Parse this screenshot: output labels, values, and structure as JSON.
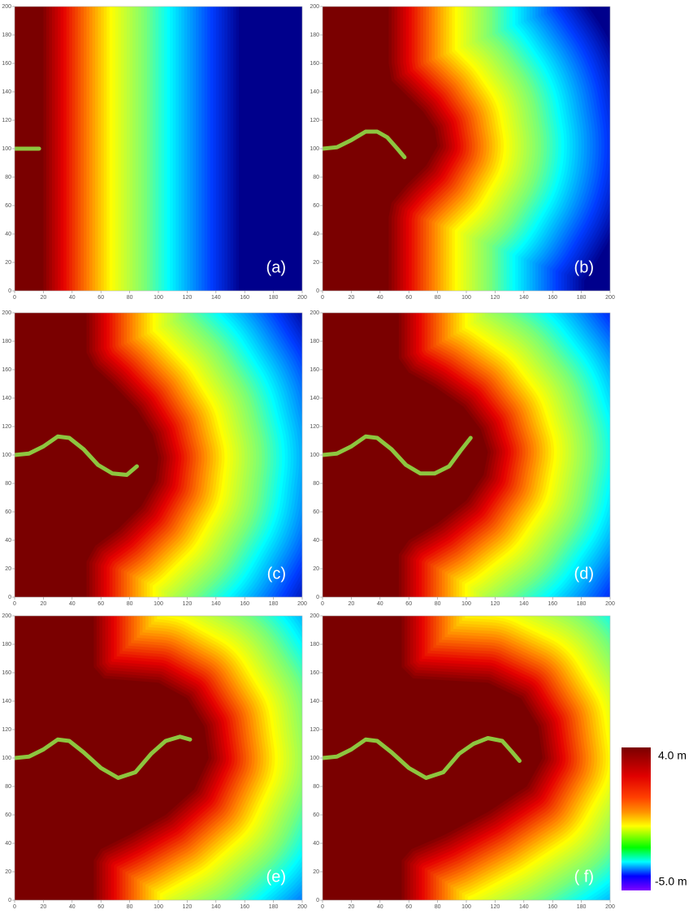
{
  "chart_data": [
    {
      "type": "heatmap",
      "annotation": "(a)",
      "xlim": [
        0,
        200
      ],
      "ylim": [
        0,
        200
      ],
      "xticks": [
        0,
        20,
        40,
        60,
        80,
        100,
        120,
        140,
        160,
        180,
        200
      ],
      "yticks": [
        0,
        20,
        40,
        60,
        80,
        100,
        120,
        140,
        160,
        180,
        200
      ],
      "front": {
        "x": [
          20,
          20
        ],
        "y": [
          0,
          200
        ]
      },
      "channel": {
        "x": [
          0,
          17
        ],
        "y": [
          100,
          100
        ]
      }
    },
    {
      "type": "heatmap",
      "annotation": "(b)",
      "xlim": [
        0,
        200
      ],
      "ylim": [
        0,
        200
      ],
      "xticks": [
        0,
        20,
        40,
        60,
        80,
        100,
        120,
        140,
        160,
        180,
        200
      ],
      "yticks": [
        0,
        20,
        40,
        60,
        80,
        100,
        120,
        140,
        160,
        180,
        200
      ],
      "front": {
        "x": [
          46,
          46,
          48,
          58,
          72,
          80,
          78,
          70,
          58,
          48,
          46,
          46
        ],
        "y": [
          0,
          52,
          62,
          74,
          88,
          102,
          114,
          126,
          138,
          148,
          160,
          200
        ]
      },
      "channel": {
        "x": [
          0,
          10,
          20,
          30,
          38,
          45,
          52,
          57
        ],
        "y": [
          100,
          101,
          106,
          112,
          112,
          108,
          100,
          94
        ]
      }
    },
    {
      "type": "heatmap",
      "annotation": "(c)",
      "xlim": [
        0,
        200
      ],
      "ylim": [
        0,
        200
      ],
      "xticks": [
        0,
        20,
        40,
        60,
        80,
        100,
        120,
        140,
        160,
        180,
        200
      ],
      "yticks": [
        0,
        20,
        40,
        60,
        80,
        100,
        120,
        140,
        160,
        180,
        200
      ],
      "front": {
        "x": [
          50,
          50,
          56,
          72,
          88,
          98,
          100,
          96,
          85,
          68,
          55,
          50,
          50
        ],
        "y": [
          0,
          25,
          36,
          48,
          64,
          82,
          98,
          114,
          132,
          150,
          162,
          172,
          200
        ]
      },
      "channel": {
        "x": [
          0,
          10,
          20,
          30,
          38,
          48,
          58,
          68,
          78,
          85
        ],
        "y": [
          100,
          101,
          106,
          113,
          112,
          104,
          93,
          87,
          86,
          92
        ]
      }
    },
    {
      "type": "heatmap",
      "annotation": "(d)",
      "xlim": [
        0,
        200
      ],
      "ylim": [
        0,
        200
      ],
      "xticks": [
        0,
        20,
        40,
        60,
        80,
        100,
        120,
        140,
        160,
        180,
        200
      ],
      "yticks": [
        0,
        20,
        40,
        60,
        80,
        100,
        120,
        140,
        160,
        180,
        200
      ],
      "front": {
        "x": [
          53,
          53,
          60,
          80,
          100,
          112,
          115,
          110,
          98,
          78,
          60,
          53,
          53
        ],
        "y": [
          0,
          30,
          40,
          52,
          68,
          86,
          102,
          118,
          134,
          148,
          158,
          168,
          200
        ]
      },
      "channel": {
        "x": [
          0,
          10,
          20,
          30,
          38,
          48,
          58,
          68,
          78,
          88,
          96,
          103
        ],
        "y": [
          100,
          101,
          106,
          113,
          112,
          104,
          93,
          87,
          87,
          92,
          103,
          112
        ]
      }
    },
    {
      "type": "heatmap",
      "annotation": "(e)",
      "xlim": [
        0,
        200
      ],
      "ylim": [
        0,
        200
      ],
      "xticks": [
        0,
        20,
        40,
        60,
        80,
        100,
        120,
        140,
        160,
        180,
        200
      ],
      "yticks": [
        0,
        20,
        40,
        60,
        80,
        100,
        120,
        140,
        160,
        180,
        200
      ],
      "front": {
        "x": [
          55,
          55,
          60,
          80,
          105,
          125,
          135,
          132,
          120,
          100,
          75,
          62,
          55,
          55
        ],
        "y": [
          0,
          28,
          36,
          46,
          60,
          78,
          100,
          122,
          142,
          153,
          155,
          156,
          164,
          200
        ]
      },
      "channel": {
        "x": [
          0,
          10,
          20,
          30,
          38,
          48,
          60,
          72,
          84,
          95,
          105,
          115,
          122
        ],
        "y": [
          100,
          101,
          106,
          113,
          112,
          104,
          93,
          86,
          90,
          103,
          112,
          115,
          113
        ]
      }
    },
    {
      "type": "heatmap",
      "annotation": "( f)",
      "xlim": [
        0,
        200
      ],
      "ylim": [
        0,
        200
      ],
      "xticks": [
        0,
        20,
        40,
        60,
        80,
        100,
        120,
        140,
        160,
        180,
        200
      ],
      "yticks": [
        0,
        20,
        40,
        60,
        80,
        100,
        120,
        140,
        160,
        180,
        200
      ],
      "front": {
        "x": [
          55,
          55,
          62,
          85,
          115,
          142,
          153,
          150,
          138,
          115,
          80,
          63,
          55,
          55
        ],
        "y": [
          0,
          28,
          36,
          46,
          62,
          80,
          100,
          122,
          142,
          153,
          155,
          156,
          164,
          200
        ]
      },
      "channel": {
        "x": [
          0,
          10,
          20,
          30,
          38,
          48,
          60,
          72,
          84,
          95,
          105,
          115,
          125,
          132,
          137
        ],
        "y": [
          100,
          101,
          106,
          113,
          112,
          104,
          93,
          86,
          90,
          103,
          110,
          114,
          112,
          104,
          98
        ]
      }
    }
  ],
  "colorbar": {
    "max_label": "4.0 m",
    "min_label": "-5.0 m"
  }
}
